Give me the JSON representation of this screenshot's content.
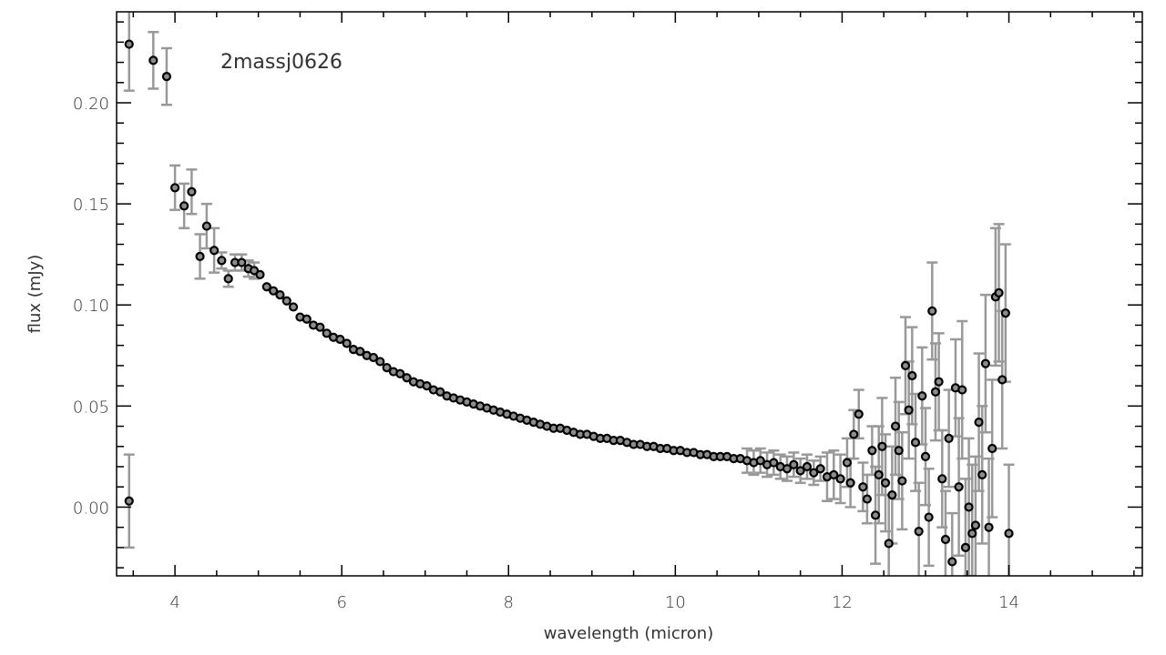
{
  "chart_data": {
    "type": "scatter",
    "title": "2massj0626",
    "xlabel": "wavelength (micron)",
    "ylabel": "flux (mJy)",
    "xlim": [
      3.3,
      15.6
    ],
    "ylim": [
      -0.034,
      0.245
    ],
    "xticks": [
      4,
      6,
      8,
      10,
      12,
      14
    ],
    "yticks": [
      0.0,
      0.05,
      0.1,
      0.15,
      0.2
    ],
    "xtick_labels": [
      "4",
      "6",
      "8",
      "10",
      "12",
      "14"
    ],
    "ytick_labels": [
      "0.00",
      "0.05",
      "0.10",
      "0.15",
      "0.20"
    ],
    "grid": false,
    "marker": "open-circle",
    "marker_color": "#000000",
    "errorbar_color": "#999999",
    "series": [
      {
        "x": [
          3.45,
          3.45,
          3.74,
          3.9,
          4.0,
          4.11,
          4.2,
          4.3,
          4.38,
          4.47,
          4.56,
          4.64,
          4.72,
          4.8,
          4.88,
          4.95,
          5.02,
          5.1,
          5.18,
          5.26,
          5.34,
          5.42,
          5.5,
          5.58,
          5.66,
          5.74,
          5.82,
          5.9,
          5.98,
          6.06,
          6.14,
          6.22,
          6.3,
          6.38,
          6.46,
          6.54,
          6.62,
          6.7,
          6.78,
          6.86,
          6.94,
          7.02,
          7.1,
          7.18,
          7.26,
          7.34,
          7.42,
          7.5,
          7.58,
          7.66,
          7.74,
          7.82,
          7.9,
          7.98,
          8.06,
          8.14,
          8.22,
          8.3,
          8.38,
          8.46,
          8.54,
          8.62,
          8.7,
          8.78,
          8.86,
          8.94,
          9.02,
          9.1,
          9.18,
          9.26,
          9.34,
          9.42,
          9.5,
          9.58,
          9.66,
          9.74,
          9.82,
          9.9,
          9.98,
          10.06,
          10.14,
          10.22,
          10.3,
          10.38,
          10.46,
          10.54,
          10.62,
          10.7,
          10.78,
          10.86,
          10.94,
          11.02,
          11.1,
          11.18,
          11.26,
          11.34,
          11.42,
          11.5,
          11.58,
          11.66,
          11.74,
          11.82,
          11.9,
          11.98,
          12.06,
          12.1,
          12.14,
          12.2,
          12.25,
          12.3,
          12.36,
          12.4,
          12.44,
          12.48,
          12.52,
          12.56,
          12.6,
          12.64,
          12.68,
          12.72,
          12.76,
          12.8,
          12.84,
          12.88,
          12.92,
          12.96,
          13.0,
          13.04,
          13.08,
          13.12,
          13.16,
          13.2,
          13.24,
          13.28,
          13.32,
          13.36,
          13.4,
          13.44,
          13.48,
          13.52,
          13.56,
          13.6,
          13.64,
          13.68,
          13.72,
          13.76,
          13.8,
          13.84,
          13.88,
          13.92,
          13.96,
          14.0
        ],
        "y": [
          0.229,
          0.003,
          0.221,
          0.213,
          0.158,
          0.149,
          0.156,
          0.124,
          0.139,
          0.127,
          0.122,
          0.113,
          0.121,
          0.121,
          0.118,
          0.117,
          0.115,
          0.109,
          0.107,
          0.105,
          0.102,
          0.099,
          0.094,
          0.093,
          0.09,
          0.089,
          0.086,
          0.084,
          0.083,
          0.081,
          0.078,
          0.077,
          0.075,
          0.074,
          0.072,
          0.069,
          0.067,
          0.066,
          0.064,
          0.062,
          0.061,
          0.06,
          0.058,
          0.057,
          0.055,
          0.054,
          0.053,
          0.052,
          0.051,
          0.05,
          0.049,
          0.048,
          0.047,
          0.046,
          0.045,
          0.044,
          0.043,
          0.042,
          0.041,
          0.04,
          0.039,
          0.039,
          0.038,
          0.037,
          0.036,
          0.036,
          0.035,
          0.034,
          0.034,
          0.033,
          0.033,
          0.032,
          0.031,
          0.031,
          0.03,
          0.03,
          0.029,
          0.029,
          0.028,
          0.028,
          0.027,
          0.027,
          0.026,
          0.026,
          0.025,
          0.025,
          0.025,
          0.024,
          0.024,
          0.023,
          0.022,
          0.023,
          0.021,
          0.022,
          0.02,
          0.019,
          0.021,
          0.018,
          0.02,
          0.017,
          0.019,
          0.015,
          0.016,
          0.014,
          0.022,
          0.012,
          0.036,
          0.046,
          0.01,
          0.004,
          0.028,
          -0.004,
          0.016,
          0.03,
          0.012,
          -0.018,
          0.006,
          0.04,
          0.028,
          0.013,
          0.07,
          0.048,
          0.065,
          0.032,
          -0.012,
          0.055,
          0.025,
          -0.005,
          0.097,
          0.057,
          0.062,
          0.014,
          -0.016,
          0.034,
          -0.027,
          0.059,
          0.01,
          0.058,
          -0.02,
          0.0,
          -0.013,
          -0.009,
          0.042,
          0.016,
          0.071,
          -0.01,
          0.029,
          0.104,
          0.106,
          0.063,
          0.096,
          -0.013
        ]
      }
    ]
  }
}
